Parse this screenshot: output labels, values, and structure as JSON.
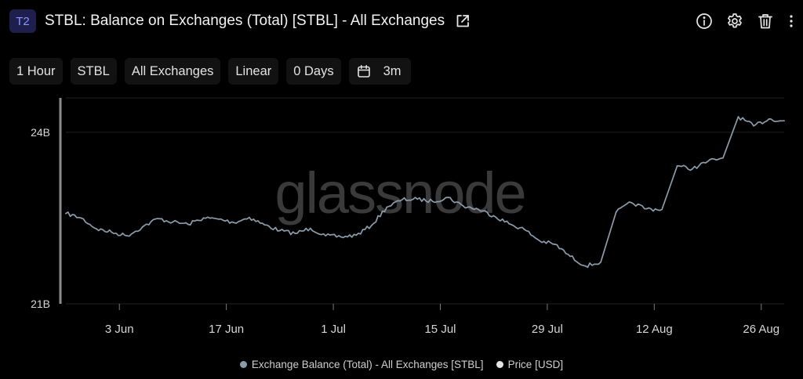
{
  "header": {
    "badge": "T2",
    "title": "STBL: Balance on Exchanges (Total) [STBL] - All Exchanges",
    "icons": [
      "external-link-icon",
      "info-icon",
      "gear-icon",
      "trash-icon",
      "more-vertical-icon"
    ]
  },
  "toolbar": {
    "resolution": "1 Hour",
    "asset": "STBL",
    "exchange": "All Exchanges",
    "scale": "Linear",
    "sma": "0 Days",
    "range": "3m",
    "range_icon": "calendar-icon"
  },
  "watermark": "glassnode",
  "colors": {
    "background": "#000000",
    "line": "#8b9cab",
    "grid": "#1f1f1f",
    "badge_bg": "#1e1f4d",
    "badge_text": "#8f93ff",
    "price_dot": "#e5e5e5"
  },
  "chart_data": {
    "type": "line",
    "title": "STBL: Balance on Exchanges (Total) [STBL] - All Exchanges",
    "x_tick_labels": [
      "3 Jun",
      "17 Jun",
      "1 Jul",
      "15 Jul",
      "29 Jul",
      "12 Aug",
      "26 Aug"
    ],
    "y_tick_labels": [
      "21B",
      "24B"
    ],
    "ylim": [
      21,
      24.6
    ],
    "y_unit": "B",
    "x_range": [
      "2025-05-27",
      "2025-08-29"
    ],
    "grid": true,
    "legend_position": "bottom",
    "series": [
      {
        "name": "Exchange Balance (Total) - All Exchanges [STBL]",
        "x": [
          "2025-05-27",
          "2025-05-29",
          "2025-05-31",
          "2025-06-02",
          "2025-06-04",
          "2025-06-06",
          "2025-06-08",
          "2025-06-10",
          "2025-06-12",
          "2025-06-14",
          "2025-06-16",
          "2025-06-18",
          "2025-06-20",
          "2025-06-22",
          "2025-06-24",
          "2025-06-26",
          "2025-06-28",
          "2025-06-30",
          "2025-07-02",
          "2025-07-04",
          "2025-07-06",
          "2025-07-08",
          "2025-07-10",
          "2025-07-12",
          "2025-07-14",
          "2025-07-16",
          "2025-07-18",
          "2025-07-20",
          "2025-07-22",
          "2025-07-24",
          "2025-07-26",
          "2025-07-28",
          "2025-07-30",
          "2025-08-01",
          "2025-08-03",
          "2025-08-05",
          "2025-08-07",
          "2025-08-09",
          "2025-08-11",
          "2025-08-13",
          "2025-08-15",
          "2025-08-17",
          "2025-08-19",
          "2025-08-21",
          "2025-08-23",
          "2025-08-25",
          "2025-08-27",
          "2025-08-29"
        ],
        "values": [
          22.58,
          22.5,
          22.31,
          22.25,
          22.19,
          22.34,
          22.49,
          22.43,
          22.39,
          22.5,
          22.48,
          22.42,
          22.51,
          22.38,
          22.28,
          22.23,
          22.32,
          22.19,
          22.17,
          22.2,
          22.37,
          22.69,
          22.82,
          22.83,
          22.79,
          22.86,
          22.71,
          22.65,
          22.54,
          22.4,
          22.3,
          22.1,
          22.04,
          21.83,
          21.66,
          21.73,
          22.6,
          22.77,
          22.66,
          22.65,
          23.41,
          23.36,
          23.49,
          23.55,
          24.27,
          24.11,
          24.23,
          24.2
        ]
      }
    ],
    "legend": [
      {
        "label": "Exchange Balance (Total) - All Exchanges [STBL]",
        "color": "#8b9cab"
      },
      {
        "label": "Price [USD]",
        "color": "#e5e5e5"
      }
    ]
  }
}
